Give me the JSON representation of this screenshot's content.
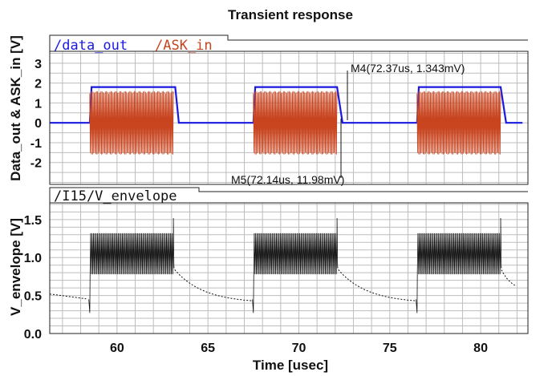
{
  "chart_data": {
    "type": "line",
    "title": "Transient response",
    "xlabel": "Time [usec]",
    "xlim": [
      56.3,
      82.6
    ],
    "x_ticks": [
      60,
      65,
      70,
      75,
      80
    ],
    "grid": true,
    "panels": [
      {
        "ylabel": "Data_out & ASK_in [V]",
        "ylim": [
          -3.1,
          3.6
        ],
        "y_ticks": [
          3,
          2,
          1,
          0,
          -1,
          -2
        ],
        "legend_position": "top-left",
        "series": [
          {
            "name": "/data_out",
            "color": "#1a1adf",
            "style": "step",
            "x": [
              56.3,
              58.5,
              58.6,
              63.2,
              63.4,
              67.5,
              67.6,
              72.1,
              72.4,
              76.5,
              76.6,
              81.1,
              81.4,
              82.3
            ],
            "y": [
              0,
              0,
              1.8,
              1.8,
              0,
              0,
              1.8,
              1.8,
              0,
              0,
              1.8,
              1.8,
              0,
              0
            ]
          },
          {
            "name": "/ASK_in",
            "color": "#c8441f",
            "style": "modulated-carrier",
            "bursts": [
              [
                58.5,
                63.1
              ],
              [
                67.5,
                72.1
              ],
              [
                76.5,
                81.1
              ]
            ],
            "amplitude_max": 1.6,
            "amplitude_min": -1.6
          }
        ],
        "annotations": [
          {
            "text": "M4(72.37us, 1.343mV)",
            "x": 72.37,
            "y": 0.001343
          },
          {
            "text": "M5(72.14us, 11.98mV)",
            "x": 72.14,
            "y": 0.01198
          }
        ]
      },
      {
        "ylabel": "V_envelope [V]",
        "ylim": [
          0.0,
          1.72
        ],
        "y_ticks": [
          1.5,
          1.0,
          0.5,
          0.0
        ],
        "legend_position": "top-left",
        "series": [
          {
            "name": "/I15/V_envelope",
            "color": "#111111",
            "style": "envelope",
            "bursts": [
              [
                58.5,
                63.1
              ],
              [
                67.5,
                72.1
              ],
              [
                76.5,
                81.1
              ]
            ],
            "ripple_high": 1.32,
            "ripple_low": 0.78,
            "decay_start": 0.88,
            "pre_burst_level": 0.52
          }
        ]
      }
    ]
  }
}
